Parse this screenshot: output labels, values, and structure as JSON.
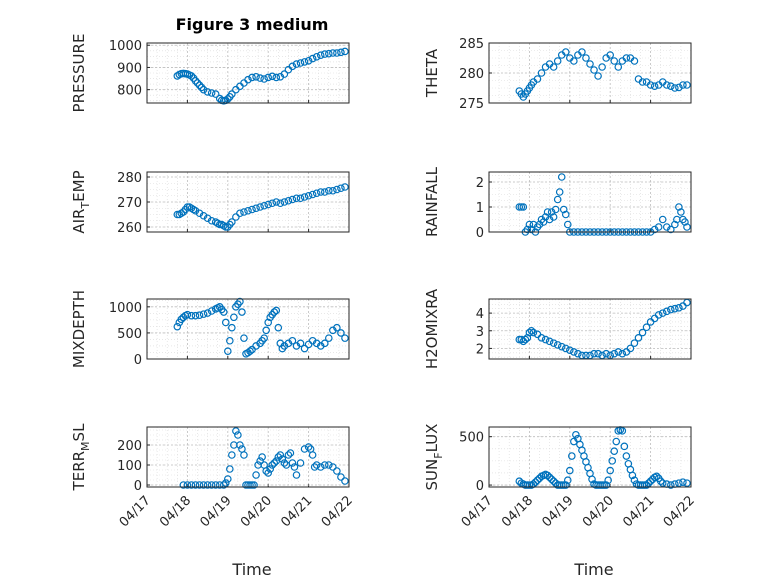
{
  "figure": {
    "title": "Figure 3 medium",
    "marker_color": "#0072BD",
    "grid": "major+minor dotted",
    "xlabel": "Time",
    "xticks": [
      "04/17",
      "04/18",
      "04/19",
      "04/20",
      "04/21",
      "04/22"
    ]
  },
  "chart_data": [
    {
      "type": "scatter",
      "ylabel": "PRESSURE",
      "ylabel_sub": "",
      "ylabel_tail": "",
      "ylim": [
        740,
        1010
      ],
      "yticks": [
        800,
        900,
        1000
      ],
      "xlim": [
        0,
        5
      ],
      "x": [
        0.75,
        0.8,
        0.85,
        0.9,
        0.95,
        1.0,
        1.05,
        1.1,
        1.15,
        1.2,
        1.25,
        1.3,
        1.35,
        1.4,
        1.5,
        1.6,
        1.7,
        1.8,
        1.85,
        1.9,
        1.95,
        2.0,
        2.05,
        2.1,
        2.2,
        2.3,
        2.4,
        2.5,
        2.6,
        2.7,
        2.8,
        2.9,
        3.0,
        3.1,
        3.2,
        3.3,
        3.4,
        3.5,
        3.6,
        3.7,
        3.8,
        3.9,
        4.0,
        4.1,
        4.2,
        4.3,
        4.4,
        4.5,
        4.6,
        4.7,
        4.8,
        4.9
      ],
      "y": [
        862,
        868,
        872,
        873,
        872,
        870,
        866,
        862,
        852,
        840,
        830,
        820,
        810,
        800,
        790,
        785,
        780,
        760,
        752,
        750,
        752,
        758,
        768,
        780,
        800,
        815,
        830,
        845,
        855,
        858,
        852,
        848,
        855,
        860,
        855,
        858,
        870,
        890,
        905,
        915,
        920,
        925,
        930,
        940,
        948,
        955,
        960,
        962,
        965,
        965,
        968,
        972
      ]
    },
    {
      "type": "scatter",
      "ylabel": "THETA",
      "ylabel_sub": "",
      "ylabel_tail": "",
      "ylim": [
        275,
        285
      ],
      "yticks": [
        275,
        280,
        285
      ],
      "xlim": [
        0,
        5
      ],
      "x": [
        0.75,
        0.8,
        0.85,
        0.9,
        0.95,
        1.0,
        1.05,
        1.1,
        1.2,
        1.3,
        1.4,
        1.5,
        1.6,
        1.7,
        1.8,
        1.9,
        2.0,
        2.1,
        2.2,
        2.3,
        2.4,
        2.5,
        2.6,
        2.7,
        2.8,
        2.9,
        3.0,
        3.1,
        3.2,
        3.3,
        3.4,
        3.5,
        3.6,
        3.7,
        3.8,
        3.9,
        4.0,
        4.1,
        4.2,
        4.3,
        4.4,
        4.5,
        4.6,
        4.7,
        4.8,
        4.9
      ],
      "y": [
        277,
        276.5,
        276,
        276.5,
        277,
        277.5,
        278,
        278.5,
        279,
        280,
        281,
        281.5,
        281,
        282,
        283,
        283.5,
        282.5,
        282,
        283,
        283.5,
        282.5,
        281.5,
        280.5,
        279.5,
        281,
        282.5,
        283,
        282,
        281,
        282,
        282.5,
        282.5,
        282,
        279,
        278.5,
        278.5,
        278,
        277.8,
        278,
        278.5,
        278,
        277.8,
        277.5,
        277.6,
        278,
        278
      ]
    },
    {
      "type": "scatter",
      "ylabel": "AIR",
      "ylabel_sub": "T",
      "ylabel_tail": "EMP",
      "ylim": [
        258,
        282
      ],
      "yticks": [
        260,
        270,
        280
      ],
      "xlim": [
        0,
        5
      ],
      "x": [
        0.75,
        0.8,
        0.85,
        0.9,
        0.95,
        1.0,
        1.05,
        1.1,
        1.15,
        1.2,
        1.3,
        1.4,
        1.5,
        1.6,
        1.7,
        1.75,
        1.8,
        1.85,
        1.9,
        1.95,
        2.0,
        2.05,
        2.1,
        2.2,
        2.3,
        2.4,
        2.5,
        2.6,
        2.7,
        2.8,
        2.9,
        3.0,
        3.1,
        3.2,
        3.3,
        3.4,
        3.5,
        3.6,
        3.7,
        3.8,
        3.9,
        4.0,
        4.1,
        4.2,
        4.3,
        4.4,
        4.5,
        4.6,
        4.7,
        4.8,
        4.9
      ],
      "y": [
        265,
        265,
        265.5,
        266,
        267,
        268,
        268,
        267.5,
        267,
        266.5,
        265.5,
        264.5,
        263.5,
        262.5,
        262,
        261.5,
        261,
        261,
        260.5,
        260,
        260,
        261,
        262,
        264,
        265.5,
        266,
        266.5,
        267,
        267.5,
        268,
        268.5,
        269,
        269.5,
        270,
        269.5,
        270,
        270.5,
        271,
        271.5,
        271.5,
        272,
        272.5,
        273,
        273.5,
        274,
        274,
        274.5,
        274.5,
        275,
        275.5,
        276
      ]
    },
    {
      "type": "scatter",
      "ylabel": "RAINFALL",
      "ylabel_sub": "",
      "ylabel_tail": "",
      "ylim": [
        0,
        2.4
      ],
      "yticks": [
        0,
        1,
        2
      ],
      "xlim": [
        0,
        5
      ],
      "x": [
        0.75,
        0.8,
        0.85,
        0.9,
        0.95,
        1.0,
        1.05,
        1.1,
        1.15,
        1.2,
        1.25,
        1.3,
        1.35,
        1.4,
        1.45,
        1.5,
        1.55,
        1.6,
        1.65,
        1.7,
        1.75,
        1.8,
        1.85,
        1.9,
        1.95,
        2.0,
        2.1,
        2.2,
        2.3,
        2.4,
        2.5,
        2.6,
        2.7,
        2.8,
        2.9,
        3.0,
        3.1,
        3.2,
        3.3,
        3.4,
        3.5,
        3.6,
        3.7,
        3.8,
        3.9,
        4.0,
        4.1,
        4.2,
        4.3,
        4.4,
        4.5,
        4.6,
        4.65,
        4.7,
        4.75,
        4.8,
        4.85,
        4.9
      ],
      "y": [
        1.0,
        1.0,
        1.0,
        0.0,
        0.1,
        0.3,
        0.1,
        0.3,
        0.0,
        0.2,
        0.3,
        0.5,
        0.4,
        0.6,
        0.8,
        0.5,
        0.8,
        0.6,
        0.9,
        1.3,
        1.6,
        2.2,
        0.9,
        0.7,
        0.3,
        0.0,
        0,
        0,
        0,
        0,
        0,
        0,
        0,
        0,
        0,
        0,
        0,
        0,
        0,
        0,
        0,
        0,
        0,
        0,
        0,
        0,
        0.1,
        0.2,
        0.5,
        0.2,
        0.1,
        0.3,
        0.5,
        1.0,
        0.8,
        0.5,
        0.4,
        0.2
      ]
    },
    {
      "type": "scatter",
      "ylabel": "MIXDEPTH",
      "ylabel_sub": "",
      "ylabel_tail": "",
      "ylim": [
        0,
        1150
      ],
      "yticks": [
        0,
        500,
        1000
      ],
      "xlim": [
        0,
        5
      ],
      "x": [
        0.75,
        0.8,
        0.85,
        0.9,
        0.95,
        1.0,
        1.1,
        1.2,
        1.3,
        1.4,
        1.5,
        1.6,
        1.7,
        1.75,
        1.8,
        1.85,
        1.9,
        1.95,
        2.0,
        2.05,
        2.1,
        2.15,
        2.2,
        2.25,
        2.3,
        2.35,
        2.4,
        2.45,
        2.5,
        2.55,
        2.6,
        2.7,
        2.8,
        2.85,
        2.9,
        2.95,
        3.0,
        3.05,
        3.1,
        3.15,
        3.2,
        3.25,
        3.3,
        3.35,
        3.4,
        3.5,
        3.6,
        3.7,
        3.8,
        3.9,
        4.0,
        4.1,
        4.2,
        4.3,
        4.4,
        4.5,
        4.6,
        4.7,
        4.8,
        4.9
      ],
      "y": [
        620,
        700,
        760,
        800,
        830,
        850,
        830,
        830,
        840,
        860,
        880,
        920,
        960,
        980,
        1000,
        950,
        900,
        700,
        150,
        350,
        600,
        800,
        1000,
        1050,
        1100,
        900,
        400,
        100,
        120,
        150,
        180,
        250,
        300,
        350,
        400,
        550,
        700,
        800,
        850,
        900,
        930,
        600,
        300,
        200,
        250,
        300,
        350,
        250,
        300,
        200,
        280,
        350,
        300,
        250,
        300,
        400,
        550,
        600,
        500,
        400
      ]
    },
    {
      "type": "scatter",
      "ylabel": "H2OMIXRA",
      "ylabel_sub": "",
      "ylabel_tail": "",
      "ylim": [
        1.4,
        4.8
      ],
      "yticks": [
        2,
        3,
        4
      ],
      "xlim": [
        0,
        5
      ],
      "x": [
        0.75,
        0.8,
        0.85,
        0.9,
        0.95,
        1.0,
        1.05,
        1.1,
        1.2,
        1.3,
        1.4,
        1.5,
        1.6,
        1.7,
        1.8,
        1.9,
        2.0,
        2.1,
        2.2,
        2.3,
        2.4,
        2.5,
        2.6,
        2.7,
        2.8,
        2.9,
        3.0,
        3.1,
        3.2,
        3.3,
        3.4,
        3.5,
        3.6,
        3.7,
        3.8,
        3.9,
        4.0,
        4.1,
        4.2,
        4.3,
        4.4,
        4.5,
        4.6,
        4.7,
        4.8,
        4.9
      ],
      "y": [
        2.5,
        2.5,
        2.4,
        2.5,
        2.6,
        2.9,
        3.0,
        2.9,
        2.8,
        2.6,
        2.5,
        2.4,
        2.3,
        2.2,
        2.1,
        2.0,
        1.9,
        1.8,
        1.7,
        1.6,
        1.6,
        1.6,
        1.7,
        1.7,
        1.6,
        1.7,
        1.6,
        1.7,
        1.8,
        1.7,
        1.8,
        2.0,
        2.3,
        2.6,
        2.9,
        3.2,
        3.5,
        3.7,
        3.9,
        4.0,
        4.1,
        4.2,
        4.25,
        4.3,
        4.4,
        4.6
      ]
    },
    {
      "type": "scatter",
      "ylabel": "TERR",
      "ylabel_sub": "M",
      "ylabel_tail": "SL",
      "ylim": [
        -10,
        290
      ],
      "yticks": [
        0,
        100,
        200
      ],
      "xlim": [
        0,
        5
      ],
      "x": [
        0.9,
        1.0,
        1.1,
        1.2,
        1.3,
        1.4,
        1.5,
        1.6,
        1.7,
        1.8,
        1.9,
        1.95,
        2.0,
        2.05,
        2.1,
        2.15,
        2.2,
        2.25,
        2.3,
        2.35,
        2.4,
        2.45,
        2.5,
        2.55,
        2.6,
        2.65,
        2.7,
        2.75,
        2.8,
        2.85,
        2.9,
        2.95,
        3.0,
        3.05,
        3.1,
        3.15,
        3.2,
        3.25,
        3.3,
        3.35,
        3.4,
        3.45,
        3.5,
        3.55,
        3.6,
        3.65,
        3.7,
        3.8,
        3.9,
        4.0,
        4.05,
        4.1,
        4.15,
        4.2,
        4.3,
        4.4,
        4.5,
        4.6,
        4.7,
        4.8,
        4.9
      ],
      "y": [
        0,
        0,
        0,
        0,
        0,
        0,
        0,
        0,
        0,
        0,
        0,
        10,
        30,
        80,
        150,
        200,
        270,
        250,
        200,
        180,
        150,
        0,
        0,
        0,
        0,
        0,
        50,
        100,
        120,
        140,
        100,
        70,
        60,
        80,
        100,
        110,
        120,
        140,
        150,
        130,
        110,
        100,
        150,
        160,
        110,
        90,
        50,
        110,
        180,
        190,
        180,
        150,
        90,
        100,
        90,
        100,
        100,
        90,
        70,
        40,
        20
      ]
    },
    {
      "type": "scatter",
      "ylabel": "SUN",
      "ylabel_sub": "F",
      "ylabel_tail": "LUX",
      "ylim": [
        -20,
        600
      ],
      "yticks": [
        0,
        500
      ],
      "xlim": [
        0,
        5
      ],
      "x": [
        0.75,
        0.8,
        0.85,
        0.9,
        0.95,
        1.0,
        1.05,
        1.1,
        1.15,
        1.2,
        1.25,
        1.3,
        1.35,
        1.4,
        1.45,
        1.5,
        1.55,
        1.6,
        1.65,
        1.7,
        1.75,
        1.8,
        1.85,
        1.9,
        1.95,
        2.0,
        2.05,
        2.1,
        2.15,
        2.2,
        2.25,
        2.3,
        2.35,
        2.4,
        2.45,
        2.5,
        2.55,
        2.6,
        2.65,
        2.7,
        2.75,
        2.8,
        2.85,
        2.9,
        2.95,
        3.0,
        3.05,
        3.1,
        3.15,
        3.2,
        3.25,
        3.3,
        3.35,
        3.4,
        3.45,
        3.5,
        3.55,
        3.6,
        3.65,
        3.7,
        3.75,
        3.8,
        3.85,
        3.9,
        3.95,
        4.0,
        4.05,
        4.1,
        4.15,
        4.2,
        4.25,
        4.3,
        4.4,
        4.5,
        4.6,
        4.7,
        4.8,
        4.9
      ],
      "y": [
        40,
        20,
        10,
        0,
        0,
        0,
        0,
        10,
        30,
        50,
        70,
        90,
        100,
        110,
        100,
        80,
        60,
        40,
        20,
        0,
        0,
        0,
        0,
        0,
        50,
        150,
        300,
        450,
        520,
        480,
        420,
        360,
        300,
        240,
        180,
        120,
        60,
        10,
        0,
        0,
        0,
        0,
        0,
        0,
        50,
        150,
        250,
        350,
        450,
        560,
        570,
        560,
        400,
        300,
        220,
        160,
        100,
        50,
        10,
        0,
        0,
        0,
        0,
        0,
        20,
        40,
        60,
        80,
        90,
        70,
        40,
        20,
        10,
        0,
        10,
        20,
        30,
        20
      ]
    }
  ]
}
